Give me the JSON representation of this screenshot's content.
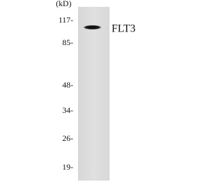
{
  "blot": {
    "unit": "(kD)",
    "markers": [
      "117-",
      "85-",
      "48-",
      "34-",
      "26-",
      "19-"
    ],
    "band_label": "FLT3"
  }
}
